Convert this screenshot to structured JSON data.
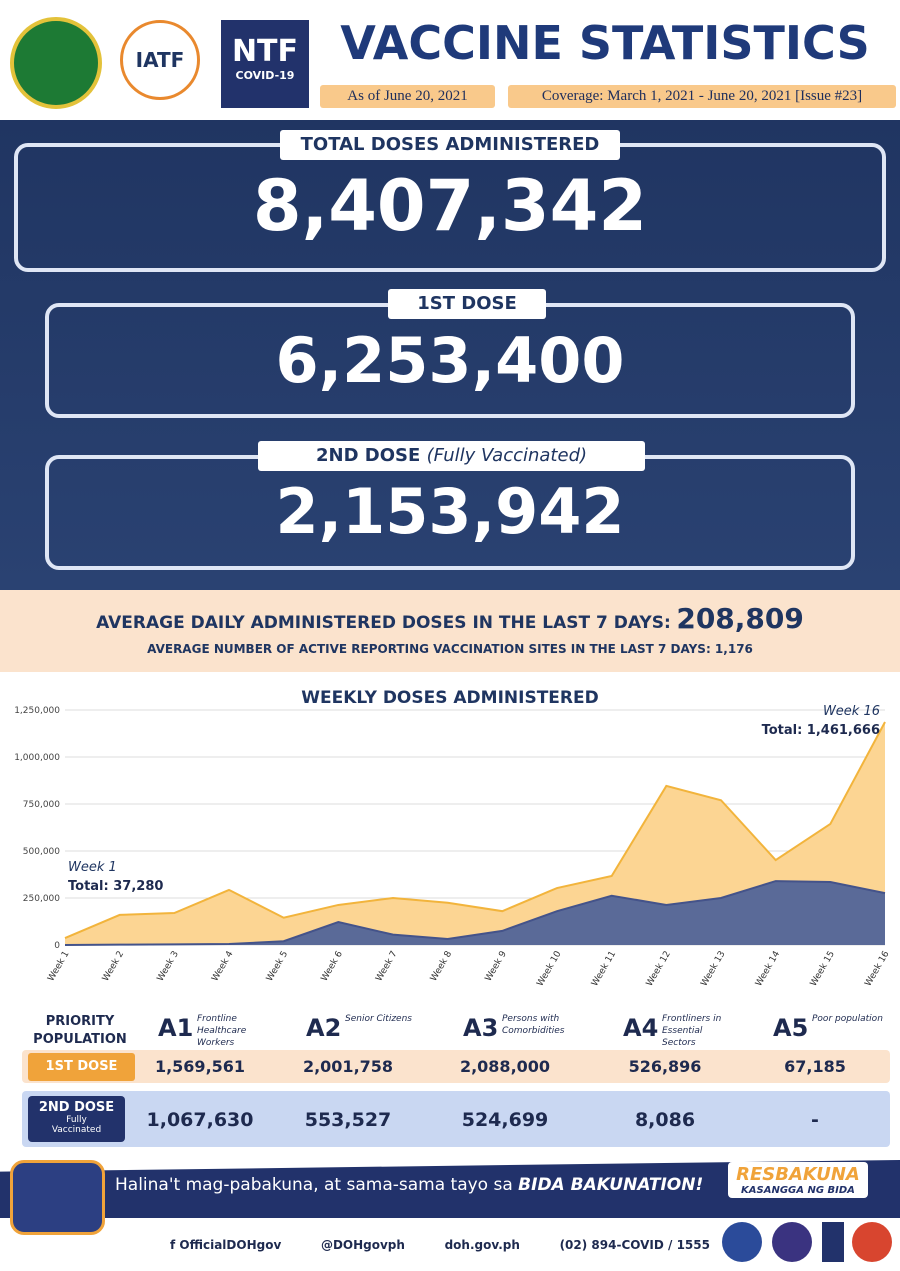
{
  "header": {
    "logos": [
      "IATF",
      "NTF",
      "COVID-19"
    ],
    "title": "VACCINE STATISTICS",
    "as_of": "As of June 20, 2021",
    "coverage": "Coverage: March 1, 2021 - June 20, 2021 [Issue #23]"
  },
  "stats": [
    {
      "label": "TOTAL DOSES ADMINISTERED",
      "value": "8,407,342"
    },
    {
      "label": "1ST DOSE",
      "value": "6,253,400"
    },
    {
      "label": "2ND DOSE",
      "note": "(Fully Vaccinated)",
      "value": "2,153,942"
    }
  ],
  "averages": {
    "daily_label": "AVERAGE DAILY ADMINISTERED DOSES IN THE LAST 7 DAYS:",
    "daily_value": "208,809",
    "sites_label": "AVERAGE NUMBER OF ACTIVE REPORTING VACCINATION SITES IN THE LAST 7 DAYS: 1,176"
  },
  "chart_data": {
    "type": "area",
    "title": "WEEKLY DOSES ADMINISTERED",
    "categories": [
      "Week 1",
      "Week 2",
      "Week 3",
      "Week 4",
      "Week 5",
      "Week 6",
      "Week 7",
      "Week 8",
      "Week 9",
      "Week 10",
      "Week 11",
      "Week 12",
      "Week 13",
      "Week 14",
      "Week 15",
      "Week 16"
    ],
    "series": [
      {
        "color": "#fcd593",
        "line_color": "#f2b43c",
        "values": [
          37000,
          160000,
          170000,
          293000,
          145000,
          213000,
          250000,
          225000,
          180000,
          303000,
          367000,
          846000,
          770000,
          452000,
          644000,
          1186000
        ]
      },
      {
        "color": "#5a6a98",
        "line_color": "#44538a",
        "values": [
          0,
          2000,
          3000,
          5000,
          20000,
          122000,
          55000,
          32000,
          75000,
          180000,
          262000,
          213000,
          250000,
          340000,
          335000,
          276000
        ]
      }
    ],
    "ylim": [
      0,
      1250000
    ],
    "yticks": [
      0,
      {
        "value": 250000,
        "label": "250,000"
      },
      {
        "value": 500000,
        "label": "500,000"
      },
      {
        "value": 750000,
        "label": "750,000"
      },
      {
        "value": 1000000,
        "label": "1,000,000"
      },
      {
        "value": 1250000,
        "label": "1,250,000"
      }
    ],
    "grid": true,
    "annotations": [
      {
        "week": "Week 1",
        "total": "Total: 37,280"
      },
      {
        "week": "Week 16",
        "total": "Total: 1,461,666"
      }
    ]
  },
  "table": {
    "header": "PRIORITY POPULATION",
    "columns": [
      {
        "code": "A1",
        "desc": "Frontline Healthcare Workers"
      },
      {
        "code": "A2",
        "desc": "Senior Citizens"
      },
      {
        "code": "A3",
        "desc": "Persons with Comorbidities"
      },
      {
        "code": "A4",
        "desc": "Frontliners in Essential Sectors"
      },
      {
        "code": "A5",
        "desc": "Poor population"
      }
    ],
    "rows": [
      {
        "label": "1ST DOSE",
        "values": [
          "1,569,561",
          "2,001,758",
          "2,088,000",
          "526,896",
          "67,185"
        ]
      },
      {
        "label": "2ND DOSE",
        "sub": "Fully Vaccinated",
        "values": [
          "1,067,630",
          "553,527",
          "524,699",
          "8,086",
          "-"
        ]
      }
    ]
  },
  "footer": {
    "slogan": "Halina't mag-pabakuna, at sama-sama tayo sa",
    "slogan_bold": "BIDA BAKUNATION!",
    "brand": "RESBAKUNA",
    "brand_sub": "KASANGGA NG BIDA",
    "contacts": [
      "f OfficialDOHgov",
      "@DOHgovph",
      "doh.gov.ph",
      "(02) 894-COVID  /  1555"
    ]
  }
}
